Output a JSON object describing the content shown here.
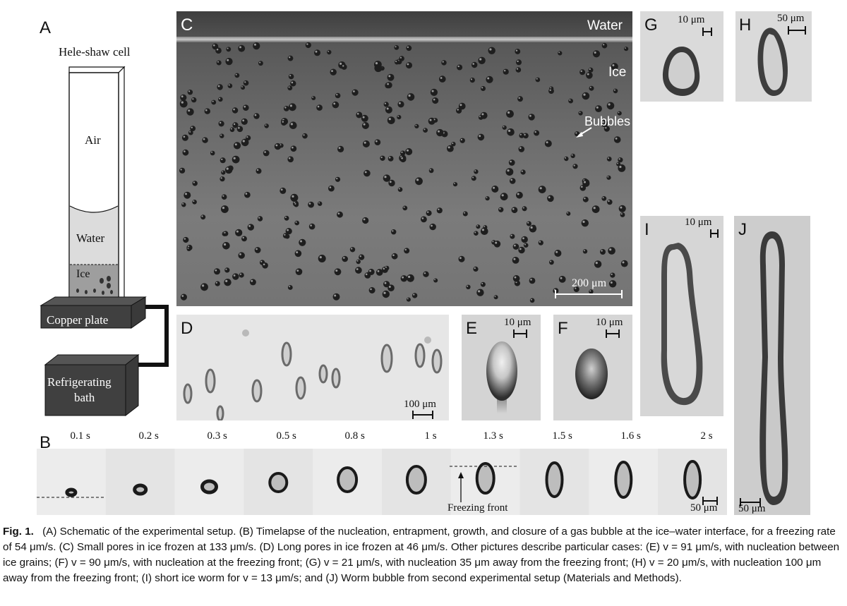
{
  "panel_a": {
    "label": "A",
    "title": "Hele-shaw cell",
    "air": "Air",
    "water": "Water",
    "ice": "Ice",
    "copper_plate": "Copper plate",
    "refrigerating_line1": "Refrigerating",
    "refrigerating_line2": "bath"
  },
  "panel_c": {
    "label": "C",
    "water": "Water",
    "ice": "Ice",
    "bubbles": "Bubbles",
    "scale": "200 μm"
  },
  "panel_d": {
    "label": "D",
    "scale": "100 μm"
  },
  "panel_e": {
    "label": "E",
    "scale": "10 μm"
  },
  "panel_f": {
    "label": "F",
    "scale": "10 μm"
  },
  "panel_g": {
    "label": "G",
    "scale": "10 μm"
  },
  "panel_h": {
    "label": "H",
    "scale": "50 μm"
  },
  "panel_i": {
    "label": "I",
    "scale": "10 μm"
  },
  "panel_j": {
    "label": "J",
    "scale": "50 μm"
  },
  "panel_b": {
    "label": "B",
    "times": [
      "0.1 s",
      "0.2 s",
      "0.3 s",
      "0.5 s",
      "0.8 s",
      "1 s",
      "1.3 s",
      "1.5 s",
      "1.6 s",
      "2 s"
    ],
    "freezing_front": "Freezing front",
    "scale": "50 μm"
  },
  "caption": {
    "fig": "Fig. 1.",
    "text": "(A) Schematic of the experimental setup. (B) Timelapse of the nucleation, entrapment, growth, and closure of a gas bubble at the ice–water interface, for a freezing rate of 54 μm/s. (C) Small pores in ice frozen at 133 μm/s. (D) Long pores in ice frozen at 46 μm/s. Other pictures describe particular cases: (E) v = 91 μm/s, with nucleation between ice grains; (F) v = 90 μm/s, with nucleation at the freezing front; (G) v = 21 μm/s, with nucleation 35 μm away from the freezing front; (H) v = 20 μm/s, with nucleation 100 μm away from the freezing front; (I) short ice worm for v = 13 μm/s; and (J) Worm bubble from second experimental setup (Materials and Methods)."
  }
}
